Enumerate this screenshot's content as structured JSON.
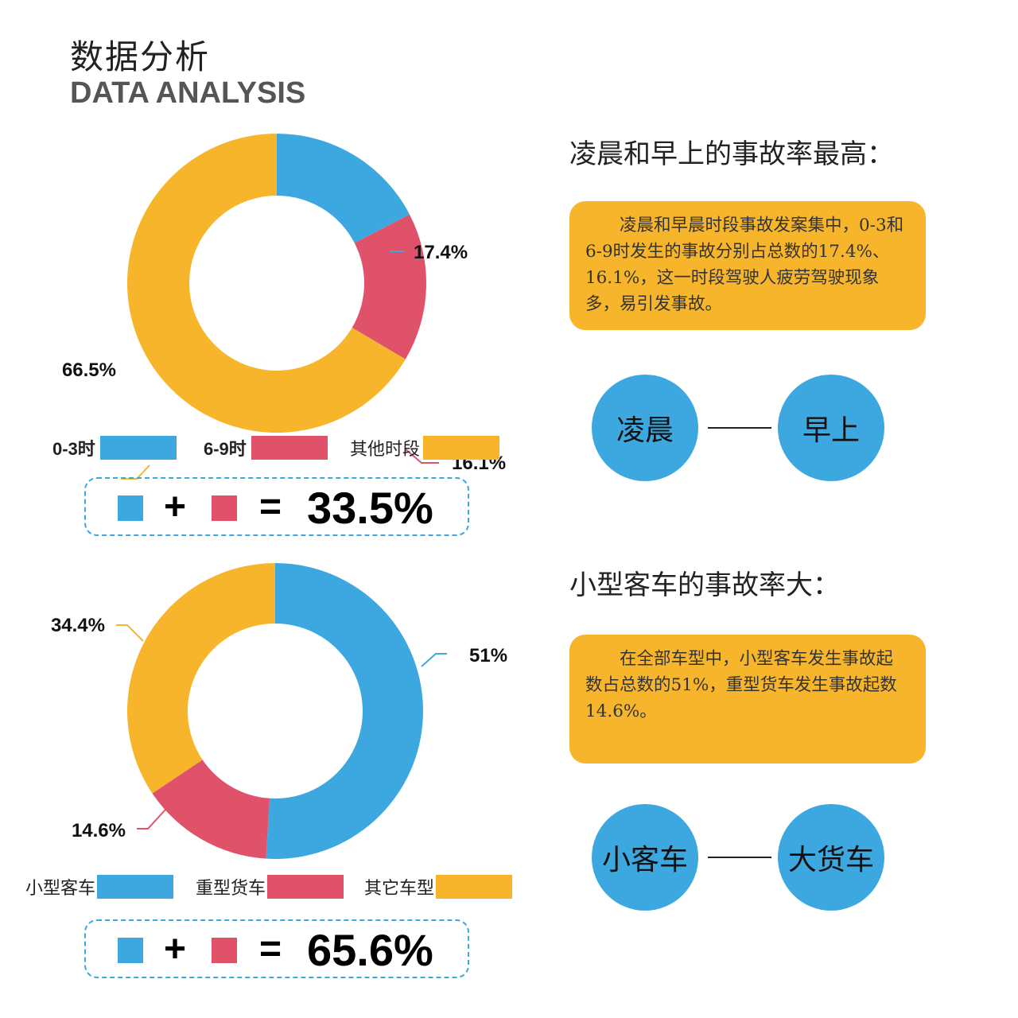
{
  "header": {
    "title_cn": "数据分析",
    "title_en": "DATA ANALYSIS"
  },
  "colors": {
    "blue": "#3da8e0",
    "red": "#e0526a",
    "yellow": "#f7b52c"
  },
  "chart_data": [
    {
      "type": "donut",
      "series": [
        {
          "name": "0-3时",
          "value": 17.4,
          "label": "17.4%",
          "color": "#3da8e0"
        },
        {
          "name": "6-9时",
          "value": 16.1,
          "label": "16.1%",
          "color": "#e0526a"
        },
        {
          "name": "其他时段",
          "value": 66.5,
          "label": "66.5%",
          "color": "#f7b52c"
        }
      ],
      "legend": {
        "placement": "bottom"
      }
    },
    {
      "type": "donut",
      "series": [
        {
          "name": "小型客车",
          "value": 51,
          "label": "51%",
          "color": "#3da8e0"
        },
        {
          "name": "重型货车",
          "value": 14.6,
          "label": "14.6%",
          "color": "#e0526a"
        },
        {
          "name": "其它车型",
          "value": 34.4,
          "label": "34.4%",
          "color": "#f7b52c"
        }
      ],
      "legend": {
        "placement": "bottom"
      }
    }
  ],
  "sum1": {
    "plus": "+",
    "equals": "=",
    "total": "33.5%"
  },
  "sum2": {
    "plus": "+",
    "equals": "=",
    "total": "65.6%"
  },
  "section1": {
    "heading": "凌晨和早上的事故率最高：",
    "note": "凌晨和早晨时段事故发案集中，0-3和6-9时发生的事故分别占总数的17.4%、16.1%，这一时段驾驶人疲劳驾驶现象多，易引发事故。",
    "circle_left": "凌晨",
    "circle_right": "早上"
  },
  "section2": {
    "heading": "小型客车的事故率大：",
    "note": "在全部车型中，小型客车发生事故起数占总数的51%，重型货车发生事故起数14.6%。",
    "circle_left": "小客车",
    "circle_right": "大货车"
  }
}
